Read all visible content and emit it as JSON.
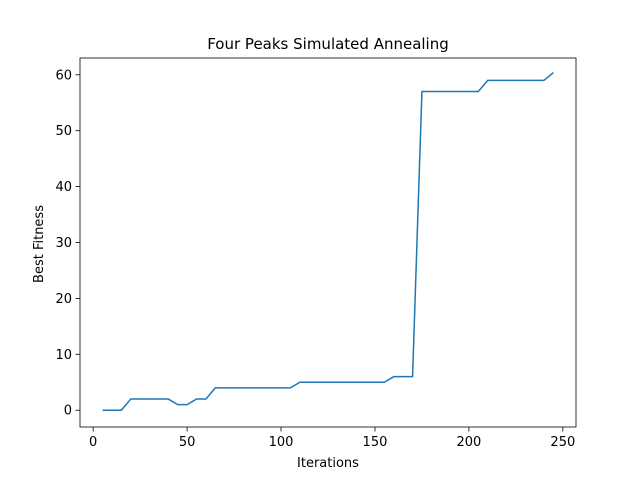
{
  "chart_data": {
    "type": "line",
    "title": "Four Peaks Simulated Annealing",
    "xlabel": "Iterations",
    "ylabel": "Best Fitness",
    "xlim": [
      -7,
      257
    ],
    "ylim": [
      -3,
      63
    ],
    "xticks": [
      0,
      50,
      100,
      150,
      200,
      250
    ],
    "yticks": [
      0,
      10,
      20,
      30,
      40,
      50,
      60
    ],
    "grid": false,
    "colors": {
      "line": "#1f77b4",
      "axes": "#000000",
      "background": "#ffffff"
    },
    "series": [
      {
        "x": [
          5,
          10,
          15,
          20,
          25,
          30,
          35,
          40,
          45,
          50,
          55,
          60,
          65,
          70,
          75,
          80,
          85,
          90,
          95,
          100,
          105,
          110,
          115,
          120,
          125,
          130,
          135,
          140,
          145,
          150,
          155,
          160,
          165,
          170,
          175,
          180,
          185,
          190,
          195,
          200,
          205,
          210,
          215,
          220,
          225,
          230,
          235,
          240,
          245
        ],
        "y": [
          0,
          0,
          0,
          2,
          2,
          2,
          2,
          2,
          1,
          1,
          2,
          2,
          4,
          4,
          4,
          4,
          4,
          4,
          4,
          4,
          4,
          5,
          5,
          5,
          5,
          5,
          5,
          5,
          5,
          5,
          5,
          6,
          6,
          6,
          57,
          57,
          57,
          57,
          57,
          57,
          57,
          59,
          59,
          59,
          59,
          59,
          59,
          59,
          60.4
        ]
      }
    ]
  }
}
